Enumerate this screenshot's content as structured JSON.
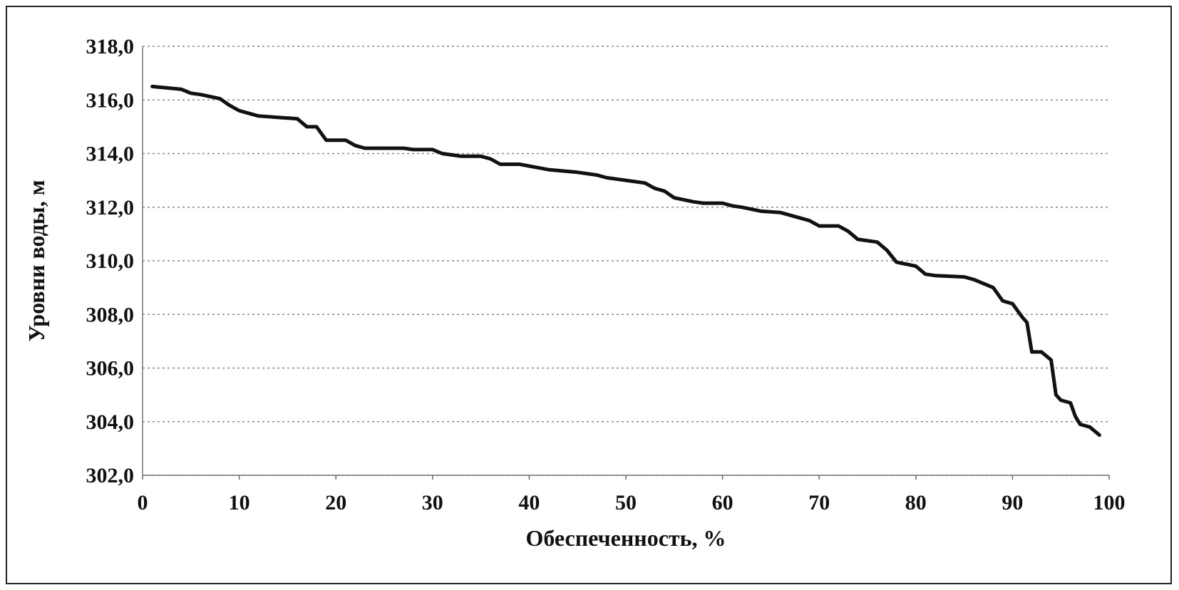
{
  "chart_data": {
    "type": "line",
    "title": "",
    "xlabel": "Обеспеченность, %",
    "ylabel": "Уровни воды, м",
    "xlim": [
      0,
      100
    ],
    "ylim": [
      302,
      318
    ],
    "x_ticks": [
      0,
      10,
      20,
      30,
      40,
      50,
      60,
      70,
      80,
      90,
      100
    ],
    "x_tick_labels": [
      "0",
      "10",
      "20",
      "30",
      "40",
      "50",
      "60",
      "70",
      "80",
      "90",
      "100"
    ],
    "y_ticks": [
      302,
      304,
      306,
      308,
      310,
      312,
      314,
      316,
      318
    ],
    "y_tick_labels": [
      "302,0",
      "304,0",
      "306,0",
      "308,0",
      "310,0",
      "312,0",
      "314,0",
      "316,0",
      "318,0"
    ],
    "grid": "horizontal dotted",
    "legend": "none",
    "series": [
      {
        "color": "#111111",
        "points": [
          [
            1,
            316.5
          ],
          [
            4,
            316.4
          ],
          [
            5,
            316.25
          ],
          [
            6,
            316.2
          ],
          [
            8,
            316.05
          ],
          [
            9,
            315.8
          ],
          [
            10,
            315.6
          ],
          [
            12,
            315.4
          ],
          [
            14,
            315.35
          ],
          [
            16,
            315.3
          ],
          [
            17,
            315.0
          ],
          [
            18,
            315.0
          ],
          [
            19,
            314.5
          ],
          [
            21,
            314.5
          ],
          [
            22,
            314.3
          ],
          [
            23,
            314.2
          ],
          [
            27,
            314.2
          ],
          [
            28,
            314.15
          ],
          [
            30,
            314.15
          ],
          [
            31,
            314.0
          ],
          [
            33,
            313.9
          ],
          [
            35,
            313.9
          ],
          [
            36,
            313.8
          ],
          [
            37,
            313.6
          ],
          [
            39,
            313.6
          ],
          [
            42,
            313.4
          ],
          [
            45,
            313.3
          ],
          [
            47,
            313.2
          ],
          [
            48,
            313.1
          ],
          [
            50,
            313.0
          ],
          [
            52,
            312.9
          ],
          [
            53,
            312.7
          ],
          [
            54,
            312.6
          ],
          [
            55,
            312.35
          ],
          [
            57,
            312.2
          ],
          [
            58,
            312.15
          ],
          [
            60,
            312.15
          ],
          [
            61,
            312.05
          ],
          [
            62,
            312.0
          ],
          [
            64,
            311.85
          ],
          [
            66,
            311.8
          ],
          [
            68,
            311.6
          ],
          [
            69,
            311.5
          ],
          [
            70,
            311.3
          ],
          [
            72,
            311.3
          ],
          [
            73,
            311.1
          ],
          [
            74,
            310.8
          ],
          [
            76,
            310.7
          ],
          [
            77,
            310.4
          ],
          [
            78,
            309.95
          ],
          [
            80,
            309.8
          ],
          [
            81,
            309.5
          ],
          [
            82,
            309.45
          ],
          [
            85,
            309.4
          ],
          [
            86,
            309.3
          ],
          [
            88,
            309.0
          ],
          [
            89,
            308.5
          ],
          [
            90,
            308.4
          ],
          [
            91,
            307.9
          ],
          [
            91.5,
            307.7
          ],
          [
            92,
            306.6
          ],
          [
            93,
            306.6
          ],
          [
            94,
            306.3
          ],
          [
            94.5,
            305.0
          ],
          [
            95,
            304.8
          ],
          [
            96,
            304.7
          ],
          [
            96.5,
            304.2
          ],
          [
            97,
            303.9
          ],
          [
            98,
            303.8
          ],
          [
            99,
            303.5
          ]
        ]
      }
    ]
  }
}
